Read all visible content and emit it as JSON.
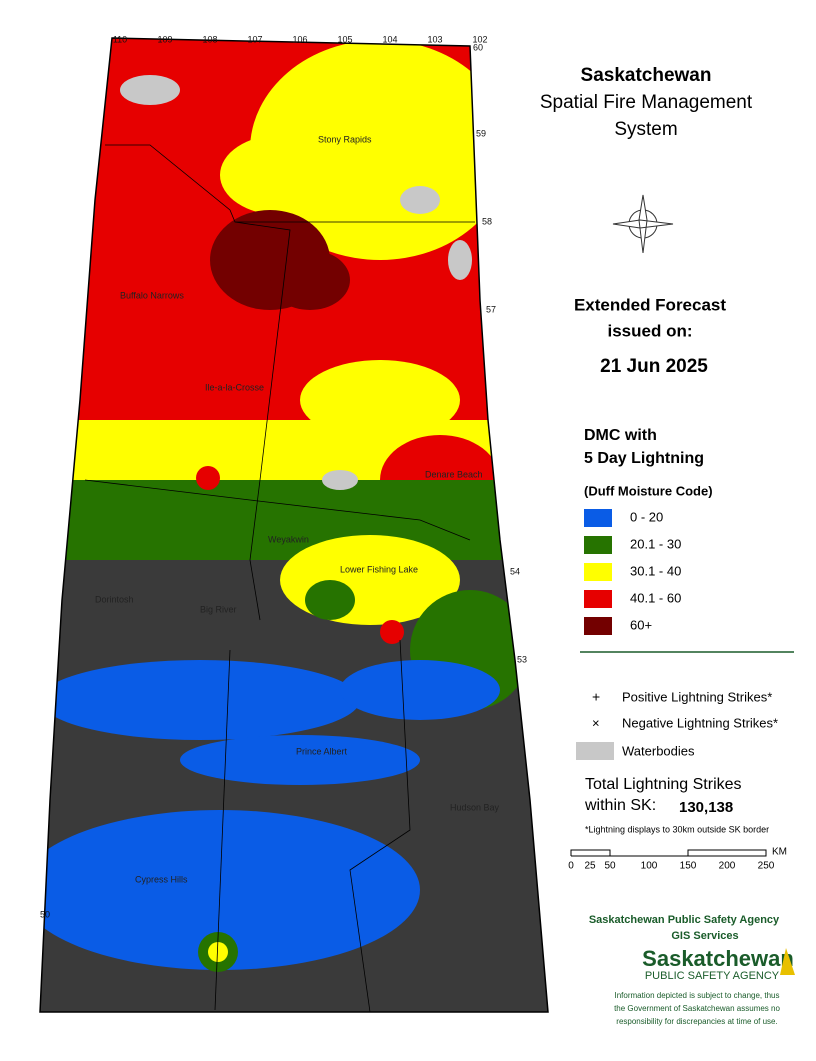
{
  "header": {
    "title": "Saskatchewan",
    "subtitle_lines": [
      "Spatial Fire Management",
      "System"
    ]
  },
  "forecast": {
    "label_lines": [
      "Extended Forecast",
      "issued on:"
    ],
    "date": "21 Jun 2025"
  },
  "legend": {
    "title_lines": [
      "DMC with",
      "5 Day Lightning"
    ],
    "subtitle": "(Duff Moisture Code)",
    "classes": [
      {
        "label": "0 - 20",
        "color": "#0a5ce6"
      },
      {
        "label": "20.1 - 30",
        "color": "#267300"
      },
      {
        "label": "30.1 - 40",
        "color": "#ffff00"
      },
      {
        "label": "40.1 - 60",
        "color": "#e60000"
      },
      {
        "label": "60+",
        "color": "#730000"
      }
    ]
  },
  "symbols": [
    {
      "symbol": "+",
      "label": "Positive Lightning Strikes*"
    },
    {
      "symbol": "×",
      "label": "Negative Lightning Strikes*"
    },
    {
      "label": "Waterbodies",
      "color": "#c8c8c8"
    }
  ],
  "total": {
    "label_lines": [
      "Total Lightning Strikes",
      "within SK:"
    ],
    "value": "130,138",
    "note": "*Lightning displays to 30km outside SK border"
  },
  "scale": {
    "ticks": [
      "0",
      "25",
      "50",
      "100",
      "150",
      "200",
      "250"
    ],
    "unit": "KM"
  },
  "agency": {
    "name": "Saskatchewan Public Safety Agency",
    "unit": "GIS  Services",
    "logo_lines": [
      "Saskatchewan",
      "PUBLIC SAFETY AGENCY"
    ]
  },
  "disclaimer_lines": [
    "Information depicted is subject to change, thus",
    "the Government of Saskatchewan assumes no",
    "responsibility for discrepancies at time of use."
  ],
  "places": [
    "Stony Rapids",
    "Buffalo Narrows",
    "Ile-a-la-Crosse",
    "Denare Beach",
    "Weyakwin",
    "Lower Fishing Lake",
    "Dorintosh",
    "Big River",
    "Prince Albert",
    "Hudson Bay",
    "Cypress Hills"
  ],
  "longitudes": [
    "110",
    "109",
    "108",
    "107",
    "106",
    "105",
    "104",
    "103",
    "102"
  ],
  "latitudes": [
    "60",
    "59",
    "58",
    "57",
    "54",
    "53",
    "50"
  ]
}
